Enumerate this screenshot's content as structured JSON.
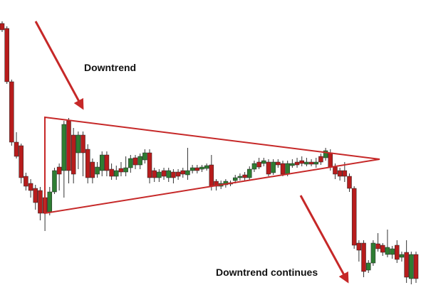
{
  "chart_data": {
    "type": "candlestick",
    "annotations": [
      "Downtrend",
      "Downtrend continues"
    ],
    "ylim": [
      0,
      408
    ],
    "up_color": "#2e7d32",
    "down_color": "#b71c1c",
    "open": [
      375,
      368,
      293,
      208,
      203,
      160,
      150,
      143,
      140,
      130,
      110,
      138,
      173,
      168,
      238,
      218,
      193,
      218,
      198,
      180,
      163,
      168,
      190,
      170,
      160,
      171,
      166,
      172,
      186,
      176,
      183,
      193,
      168,
      158,
      168,
      158,
      166,
      166,
      168,
      162,
      168,
      172,
      170,
      171,
      176,
      153,
      146,
      148,
      151,
      154,
      158,
      162,
      158,
      170,
      180,
      178,
      180,
      165,
      180,
      178,
      163,
      175,
      180,
      182,
      177,
      180,
      177,
      188,
      186,
      193,
      173,
      168,
      168,
      160,
      143,
      66,
      66,
      28,
      38,
      65,
      63,
      50,
      50,
      63,
      46,
      53,
      16,
      50
    ],
    "high": [
      378,
      371,
      296,
      222,
      206,
      165,
      156,
      148,
      145,
      133,
      145,
      172,
      178,
      238,
      242,
      228,
      223,
      223,
      205,
      185,
      180,
      195,
      195,
      178,
      175,
      180,
      188,
      190,
      190,
      192,
      198,
      198,
      172,
      170,
      172,
      172,
      170,
      170,
      172,
      200,
      176,
      176,
      176,
      178,
      190,
      156,
      154,
      156,
      154,
      162,
      164,
      166,
      174,
      182,
      186,
      186,
      184,
      184,
      184,
      182,
      182,
      184,
      186,
      188,
      186,
      184,
      186,
      192,
      200,
      198,
      178,
      172,
      180,
      164,
      146,
      70,
      70,
      42,
      70,
      80,
      66,
      85,
      62,
      70,
      54,
      70,
      54,
      54
    ],
    "low": [
      363,
      290,
      203,
      185,
      150,
      140,
      130,
      113,
      98,
      83,
      105,
      135,
      140,
      130,
      150,
      150,
      170,
      160,
      150,
      150,
      158,
      160,
      160,
      155,
      155,
      160,
      160,
      165,
      170,
      170,
      178,
      150,
      152,
      152,
      155,
      152,
      150,
      155,
      158,
      155,
      164,
      164,
      166,
      168,
      140,
      140,
      142,
      144,
      146,
      150,
      154,
      154,
      154,
      166,
      170,
      174,
      160,
      162,
      172,
      160,
      160,
      172,
      172,
      174,
      174,
      174,
      172,
      176,
      182,
      168,
      156,
      154,
      152,
      138,
      58,
      40,
      18,
      24,
      34,
      54,
      48,
      46,
      44,
      38,
      40,
      10,
      8,
      10
    ],
    "close": [
      366,
      293,
      208,
      188,
      158,
      146,
      140,
      123,
      108,
      108,
      138,
      168,
      163,
      233,
      168,
      163,
      218,
      193,
      158,
      158,
      173,
      190,
      168,
      160,
      168,
      166,
      172,
      185,
      176,
      188,
      193,
      158,
      158,
      166,
      160,
      168,
      158,
      160,
      163,
      168,
      172,
      168,
      173,
      175,
      146,
      146,
      150,
      153,
      149,
      158,
      160,
      158,
      170,
      178,
      173,
      182,
      163,
      180,
      176,
      163,
      178,
      178,
      176,
      178,
      180,
      177,
      180,
      180,
      196,
      173,
      163,
      160,
      160,
      143,
      63,
      56,
      26,
      38,
      66,
      58,
      53,
      60,
      58,
      43,
      50,
      18,
      50,
      16
    ]
  }
}
